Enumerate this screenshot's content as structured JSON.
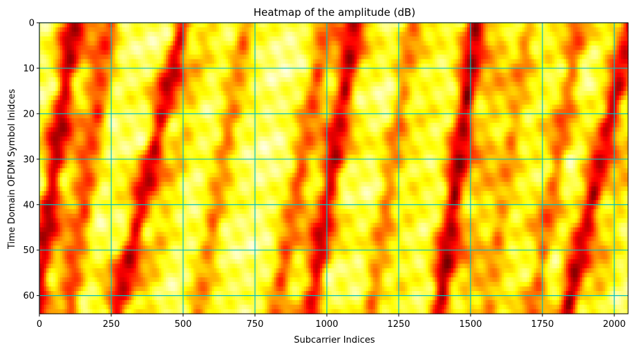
{
  "chart_data": {
    "type": "heatmap",
    "title": "Heatmap of the amplitude (dB)",
    "xlabel": "Subcarrier Indices",
    "ylabel": "Time Domain OFDM Symbol Inidces",
    "xlim": [
      0,
      2048
    ],
    "ylim": [
      0,
      64
    ],
    "y_inverted": true,
    "x_ticks": [
      0,
      250,
      500,
      750,
      1000,
      1250,
      1500,
      1750,
      2000
    ],
    "y_ticks": [
      0,
      10,
      20,
      30,
      40,
      50,
      60
    ],
    "grid": true,
    "grid_color": "#00bfbf",
    "colormap": "hot",
    "colormap_range_visible": [
      "#7a0000",
      "#ffffe8"
    ],
    "dark_streaks": [
      {
        "x_top": 120,
        "slope": -2.1,
        "strength": 0.9
      },
      {
        "x_top": 500,
        "slope": -3.6,
        "strength": 0.85
      },
      {
        "x_top": 1100,
        "slope": -2.4,
        "strength": 0.75
      },
      {
        "x_top": 1520,
        "slope": -2.0,
        "strength": 0.95
      },
      {
        "x_top": 2060,
        "slope": -3.5,
        "strength": 0.85
      },
      {
        "x_top": 1000,
        "slope": -2.8,
        "strength": 0.55
      },
      {
        "x_top": 250,
        "slope": -2.2,
        "strength": 0.5
      },
      {
        "x_top": 720,
        "slope": -2.6,
        "strength": 0.45
      },
      {
        "x_top": 1300,
        "slope": -2.3,
        "strength": 0.45
      },
      {
        "x_top": 1880,
        "slope": -2.5,
        "strength": 0.55
      },
      {
        "x_top": 1700,
        "slope": -2.2,
        "strength": 0.4
      }
    ]
  }
}
